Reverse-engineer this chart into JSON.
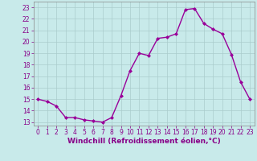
{
  "x": [
    0,
    1,
    2,
    3,
    4,
    5,
    6,
    7,
    8,
    9,
    10,
    11,
    12,
    13,
    14,
    15,
    16,
    17,
    18,
    19,
    20,
    21,
    22,
    23
  ],
  "y": [
    15.0,
    14.8,
    14.4,
    13.4,
    13.4,
    13.2,
    13.1,
    13.0,
    13.4,
    15.3,
    17.5,
    19.0,
    18.8,
    20.3,
    20.4,
    20.7,
    22.8,
    22.9,
    21.6,
    21.1,
    20.7,
    18.9,
    16.5,
    15.0
  ],
  "line_color": "#990099",
  "marker": "D",
  "marker_size": 2,
  "linewidth": 1.0,
  "bg_color": "#c8eaea",
  "grid_color": "#aacccc",
  "xlabel": "Windchill (Refroidissement éolien,°C)",
  "xlabel_fontsize": 6.5,
  "yticks": [
    13,
    14,
    15,
    16,
    17,
    18,
    19,
    20,
    21,
    22,
    23
  ],
  "xticks": [
    0,
    1,
    2,
    3,
    4,
    5,
    6,
    7,
    8,
    9,
    10,
    11,
    12,
    13,
    14,
    15,
    16,
    17,
    18,
    19,
    20,
    21,
    22,
    23
  ],
  "ylim": [
    12.7,
    23.5
  ],
  "xlim": [
    -0.5,
    23.5
  ],
  "tick_fontsize": 5.5,
  "tick_color": "#880088",
  "label_color": "#880088"
}
